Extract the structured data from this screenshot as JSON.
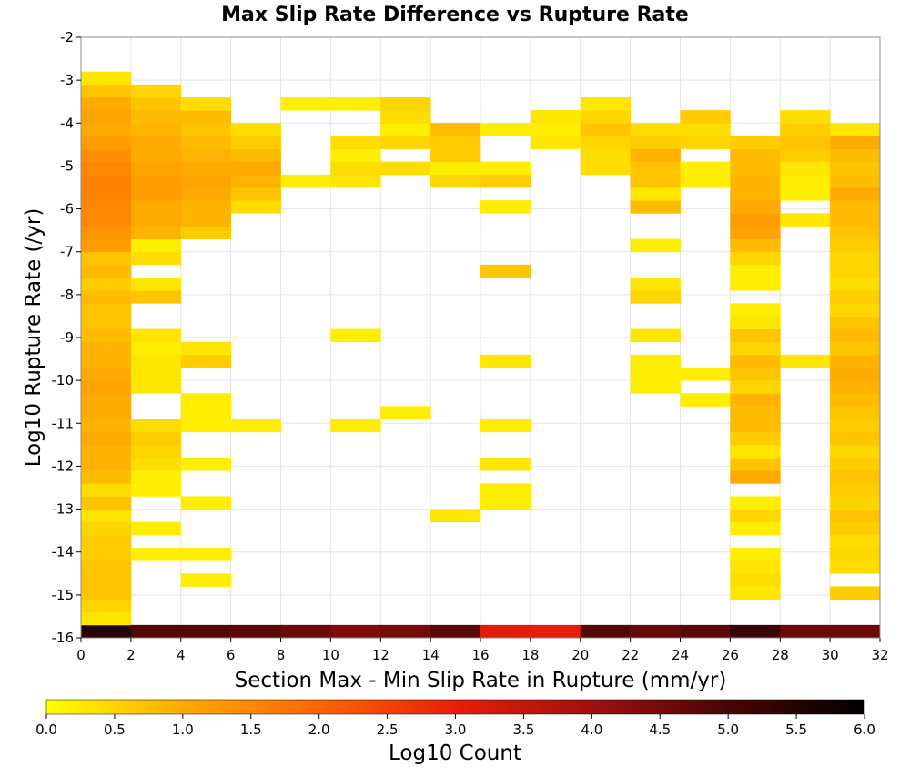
{
  "chart_data": {
    "type": "heatmap",
    "title": "Max Slip Rate Difference vs Rupture Rate",
    "xlabel": "Section Max - Min Slip Rate in Rupture (mm/yr)",
    "ylabel": "Log10 Rupture Rate (/yr)",
    "colorbar_label": "Log10 Count",
    "xlim": [
      0,
      32
    ],
    "ylim": [
      -16,
      -2
    ],
    "x_ticks": [
      "0",
      "2",
      "4",
      "6",
      "8",
      "10",
      "12",
      "14",
      "16",
      "18",
      "20",
      "22",
      "24",
      "26",
      "28",
      "30",
      "32"
    ],
    "y_ticks": [
      "-2",
      "-3",
      "-4",
      "-5",
      "-6",
      "-7",
      "-8",
      "-9",
      "-10",
      "-11",
      "-12",
      "-13",
      "-14",
      "-15",
      "-16"
    ],
    "colorbar_ticks": [
      "0.0",
      "0.5",
      "1.0",
      "1.5",
      "2.0",
      "2.5",
      "3.0",
      "3.5",
      "4.0",
      "4.5",
      "5.0",
      "5.5",
      "6.0"
    ],
    "color_range": [
      0,
      6
    ],
    "colormap": [
      "#ffff00",
      "#ffaa00",
      "#ff6600",
      "#e81e08",
      "#a01010",
      "#4a0505",
      "#000000"
    ],
    "x_bin_width": 2,
    "y_bin_height": 0.3,
    "grid": true,
    "legend": "colorbar-bottom",
    "columns": [
      {
        "x": 0,
        "cells": [
          [
            -16.0,
            5.5
          ],
          [
            -15.7,
            0.3
          ],
          [
            -15.4,
            0.5
          ],
          [
            -15.1,
            0.7
          ],
          [
            -14.8,
            0.7
          ],
          [
            -14.5,
            0.7
          ],
          [
            -14.2,
            0.6
          ],
          [
            -13.9,
            0.6
          ],
          [
            -13.6,
            0.5
          ],
          [
            -13.3,
            0.3
          ],
          [
            -13.0,
            0.7
          ],
          [
            -12.7,
            0.4
          ],
          [
            -12.4,
            0.8
          ],
          [
            -12.1,
            0.9
          ],
          [
            -11.8,
            0.9
          ],
          [
            -11.5,
            1.0
          ],
          [
            -11.2,
            0.9
          ],
          [
            -10.9,
            1.0
          ],
          [
            -10.6,
            1.0
          ],
          [
            -10.3,
            1.1
          ],
          [
            -10.0,
            1.0
          ],
          [
            -9.7,
            0.9
          ],
          [
            -9.4,
            0.9
          ],
          [
            -9.1,
            0.8
          ],
          [
            -8.8,
            0.7
          ],
          [
            -8.5,
            0.7
          ],
          [
            -8.2,
            0.8
          ],
          [
            -7.9,
            0.6
          ],
          [
            -7.6,
            0.8
          ],
          [
            -7.3,
            0.7
          ],
          [
            -7.0,
            1.2
          ],
          [
            -6.7,
            1.3
          ],
          [
            -6.4,
            1.5
          ],
          [
            -6.1,
            1.5
          ],
          [
            -5.8,
            1.6
          ],
          [
            -5.5,
            1.6
          ],
          [
            -5.2,
            1.5
          ],
          [
            -4.9,
            1.4
          ],
          [
            -4.6,
            1.2
          ],
          [
            -4.3,
            1.0
          ],
          [
            -4.0,
            1.1
          ],
          [
            -3.7,
            1.0
          ],
          [
            -3.4,
            0.7
          ],
          [
            -3.1,
            0.3
          ]
        ]
      },
      {
        "x": 2,
        "cells": [
          [
            -16.0,
            4.9
          ],
          [
            -14.2,
            0.2
          ],
          [
            -13.6,
            0.2
          ],
          [
            -12.7,
            0.2
          ],
          [
            -12.4,
            0.2
          ],
          [
            -12.1,
            0.4
          ],
          [
            -11.8,
            0.5
          ],
          [
            -11.5,
            0.6
          ],
          [
            -11.2,
            0.4
          ],
          [
            -10.3,
            0.3
          ],
          [
            -10.0,
            0.3
          ],
          [
            -9.7,
            0.3
          ],
          [
            -9.4,
            0.2
          ],
          [
            -9.1,
            0.3
          ],
          [
            -8.2,
            0.7
          ],
          [
            -7.9,
            0.3
          ],
          [
            -7.3,
            0.4
          ],
          [
            -7.0,
            0.2
          ],
          [
            -6.7,
            0.9
          ],
          [
            -6.4,
            1.0
          ],
          [
            -6.1,
            1.0
          ],
          [
            -5.8,
            1.2
          ],
          [
            -5.5,
            1.2
          ],
          [
            -5.2,
            1.1
          ],
          [
            -4.9,
            1.0
          ],
          [
            -4.6,
            1.0
          ],
          [
            -4.3,
            0.9
          ],
          [
            -4.0,
            0.8
          ],
          [
            -3.7,
            0.7
          ],
          [
            -3.4,
            0.5
          ]
        ]
      },
      {
        "x": 4,
        "cells": [
          [
            -16.0,
            4.9
          ],
          [
            -14.8,
            0.2
          ],
          [
            -14.2,
            0.2
          ],
          [
            -13.0,
            0.2
          ],
          [
            -12.1,
            0.2
          ],
          [
            -11.2,
            0.2
          ],
          [
            -10.9,
            0.2
          ],
          [
            -10.6,
            0.2
          ],
          [
            -9.7,
            0.6
          ],
          [
            -9.4,
            0.3
          ],
          [
            -6.7,
            0.6
          ],
          [
            -6.4,
            0.9
          ],
          [
            -6.1,
            0.9
          ],
          [
            -5.8,
            1.0
          ],
          [
            -5.5,
            1.1
          ],
          [
            -5.2,
            1.0
          ],
          [
            -4.9,
            0.9
          ],
          [
            -4.6,
            0.8
          ],
          [
            -4.3,
            0.7
          ],
          [
            -4.0,
            0.8
          ],
          [
            -3.7,
            0.4
          ]
        ]
      },
      {
        "x": 6,
        "cells": [
          [
            -16.0,
            4.8
          ],
          [
            -11.2,
            0.2
          ],
          [
            -6.1,
            0.4
          ],
          [
            -5.8,
            0.7
          ],
          [
            -5.5,
            0.9
          ],
          [
            -5.2,
            1.0
          ],
          [
            -4.9,
            0.8
          ],
          [
            -4.6,
            0.6
          ],
          [
            -4.3,
            0.4
          ]
        ]
      },
      {
        "x": 8,
        "cells": [
          [
            -16.0,
            4.6
          ],
          [
            -5.5,
            0.2
          ],
          [
            -3.7,
            0.2
          ]
        ]
      },
      {
        "x": 10,
        "cells": [
          [
            -16.0,
            4.4
          ],
          [
            -11.2,
            0.2
          ],
          [
            -9.1,
            0.2
          ],
          [
            -5.5,
            0.3
          ],
          [
            -5.2,
            0.4
          ],
          [
            -4.9,
            0.2
          ],
          [
            -4.6,
            0.4
          ],
          [
            -3.7,
            0.2
          ]
        ]
      },
      {
        "x": 12,
        "cells": [
          [
            -16.0,
            4.5
          ],
          [
            -10.9,
            0.2
          ],
          [
            -5.2,
            0.4
          ],
          [
            -4.6,
            0.5
          ],
          [
            -4.3,
            0.2
          ],
          [
            -4.0,
            0.4
          ],
          [
            -3.7,
            0.5
          ]
        ]
      },
      {
        "x": 14,
        "cells": [
          [
            -16.0,
            4.8
          ],
          [
            -13.3,
            0.3
          ],
          [
            -5.5,
            0.5
          ],
          [
            -5.2,
            0.2
          ],
          [
            -4.9,
            0.6
          ],
          [
            -4.6,
            0.6
          ],
          [
            -4.3,
            0.8
          ]
        ]
      },
      {
        "x": 16,
        "cells": [
          [
            -16.0,
            3.1
          ],
          [
            -13.0,
            0.2
          ],
          [
            -12.7,
            0.2
          ],
          [
            -12.1,
            0.3
          ],
          [
            -11.2,
            0.2
          ],
          [
            -9.7,
            0.3
          ],
          [
            -7.6,
            0.7
          ],
          [
            -6.1,
            0.2
          ],
          [
            -5.5,
            0.6
          ],
          [
            -5.2,
            0.2
          ],
          [
            -4.3,
            0.2
          ]
        ]
      },
      {
        "x": 18,
        "cells": [
          [
            -16.0,
            3.0
          ],
          [
            -4.6,
            0.3
          ],
          [
            -4.3,
            0.2
          ],
          [
            -4.0,
            0.3
          ]
        ]
      },
      {
        "x": 20,
        "cells": [
          [
            -16.0,
            4.9
          ],
          [
            -5.2,
            0.4
          ],
          [
            -4.9,
            0.4
          ],
          [
            -4.6,
            0.5
          ],
          [
            -4.3,
            0.7
          ],
          [
            -4.0,
            0.5
          ],
          [
            -3.7,
            0.3
          ]
        ]
      },
      {
        "x": 22,
        "cells": [
          [
            -16.0,
            4.7
          ],
          [
            -10.3,
            0.2
          ],
          [
            -10.0,
            0.2
          ],
          [
            -9.7,
            0.2
          ],
          [
            -9.1,
            0.3
          ],
          [
            -8.2,
            0.5
          ],
          [
            -7.9,
            0.3
          ],
          [
            -7.0,
            0.2
          ],
          [
            -6.1,
            0.8
          ],
          [
            -5.8,
            0.3
          ],
          [
            -5.5,
            0.7
          ],
          [
            -5.2,
            0.7
          ],
          [
            -4.9,
            0.9
          ],
          [
            -4.6,
            0.6
          ],
          [
            -4.3,
            0.4
          ]
        ]
      },
      {
        "x": 24,
        "cells": [
          [
            -16.0,
            4.8
          ],
          [
            -10.6,
            0.2
          ],
          [
            -10.0,
            0.2
          ],
          [
            -5.5,
            0.2
          ],
          [
            -5.2,
            0.2
          ],
          [
            -4.6,
            0.5
          ],
          [
            -4.3,
            0.4
          ],
          [
            -4.0,
            0.6
          ]
        ]
      },
      {
        "x": 26,
        "cells": [
          [
            -16.0,
            5.2
          ],
          [
            -15.1,
            0.3
          ],
          [
            -14.8,
            0.4
          ],
          [
            -14.5,
            0.3
          ],
          [
            -14.2,
            0.2
          ],
          [
            -13.6,
            0.2
          ],
          [
            -13.3,
            0.5
          ],
          [
            -13.0,
            0.2
          ],
          [
            -12.4,
            1.0
          ],
          [
            -12.1,
            0.7
          ],
          [
            -11.8,
            0.3
          ],
          [
            -11.5,
            0.6
          ],
          [
            -11.2,
            0.8
          ],
          [
            -10.9,
            0.8
          ],
          [
            -10.6,
            0.9
          ],
          [
            -10.3,
            0.5
          ],
          [
            -10.0,
            0.7
          ],
          [
            -9.7,
            0.8
          ],
          [
            -9.4,
            0.5
          ],
          [
            -9.1,
            0.7
          ],
          [
            -8.8,
            0.3
          ],
          [
            -8.5,
            0.2
          ],
          [
            -7.9,
            0.2
          ],
          [
            -7.6,
            0.2
          ],
          [
            -7.3,
            0.5
          ],
          [
            -7.0,
            0.8
          ],
          [
            -6.7,
            1.1
          ],
          [
            -6.4,
            1.2
          ],
          [
            -6.1,
            1.0
          ],
          [
            -5.8,
            0.9
          ],
          [
            -5.5,
            0.9
          ],
          [
            -5.2,
            0.8
          ],
          [
            -4.9,
            0.8
          ],
          [
            -4.6,
            0.6
          ]
        ]
      },
      {
        "x": 28,
        "cells": [
          [
            -16.0,
            4.6
          ],
          [
            -9.7,
            0.3
          ],
          [
            -6.4,
            0.3
          ],
          [
            -5.8,
            0.2
          ],
          [
            -5.5,
            0.2
          ],
          [
            -5.2,
            0.3
          ],
          [
            -4.9,
            0.6
          ],
          [
            -4.6,
            0.7
          ],
          [
            -4.3,
            0.6
          ],
          [
            -4.0,
            0.4
          ]
        ]
      },
      {
        "x": 30,
        "cells": [
          [
            -16.0,
            4.6
          ],
          [
            -15.1,
            0.6
          ],
          [
            -14.5,
            0.4
          ],
          [
            -14.2,
            0.5
          ],
          [
            -13.9,
            0.4
          ],
          [
            -13.6,
            0.6
          ],
          [
            -13.3,
            0.7
          ],
          [
            -13.0,
            0.5
          ],
          [
            -12.7,
            0.6
          ],
          [
            -12.4,
            0.7
          ],
          [
            -12.1,
            0.6
          ],
          [
            -11.8,
            0.5
          ],
          [
            -11.5,
            0.7
          ],
          [
            -11.2,
            0.6
          ],
          [
            -10.9,
            0.7
          ],
          [
            -10.6,
            0.8
          ],
          [
            -10.3,
            0.9
          ],
          [
            -10.0,
            1.0
          ],
          [
            -9.7,
            0.9
          ],
          [
            -9.4,
            0.7
          ],
          [
            -9.1,
            0.8
          ],
          [
            -8.8,
            0.7
          ],
          [
            -8.5,
            0.5
          ],
          [
            -8.2,
            0.6
          ],
          [
            -7.9,
            0.4
          ],
          [
            -7.6,
            0.5
          ],
          [
            -7.3,
            0.5
          ],
          [
            -7.0,
            0.6
          ],
          [
            -6.7,
            0.7
          ],
          [
            -6.4,
            0.8
          ],
          [
            -6.1,
            0.8
          ],
          [
            -5.8,
            1.0
          ],
          [
            -5.5,
            0.8
          ],
          [
            -5.2,
            0.7
          ],
          [
            -4.9,
            0.8
          ],
          [
            -4.6,
            1.0
          ],
          [
            -4.3,
            0.3
          ]
        ]
      }
    ]
  }
}
